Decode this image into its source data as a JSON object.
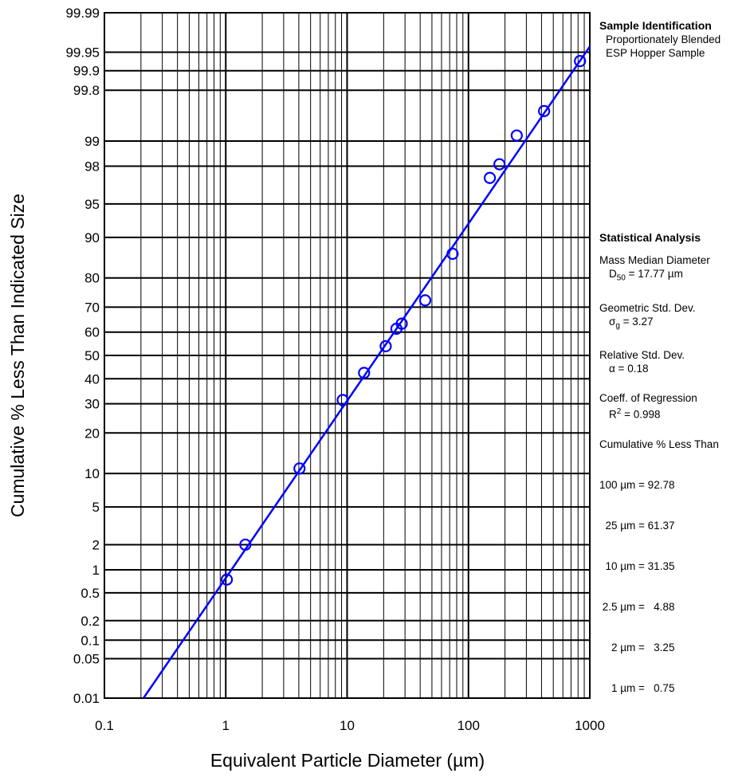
{
  "chart_data": {
    "type": "scatter",
    "title": "",
    "xlabel": "Equivalent Particle Diameter (µm)",
    "ylabel": "Cumulative % Less Than Indicated Size",
    "x_scale": "log",
    "y_scale": "probability",
    "xlim": [
      0.1,
      1000
    ],
    "ylim": [
      0.01,
      99.99
    ],
    "grid": true,
    "x_ticks": [
      "0.1",
      "1",
      "10",
      "100",
      "1000"
    ],
    "y_ticks": [
      "0.01",
      "0.05",
      "0.1",
      "0.2",
      "0.5",
      "1",
      "2",
      "5",
      "10",
      "20",
      "30",
      "40",
      "50",
      "60",
      "70",
      "80",
      "90",
      "95",
      "98",
      "99",
      "99.8",
      "99.9",
      "99.95",
      "99.99"
    ],
    "series": [
      {
        "marker": "open-circle",
        "color": "#0000ff",
        "x": [
          1.02,
          1.45,
          4.05,
          9.2,
          13.8,
          20.8,
          25.5,
          28.2,
          44.0,
          74.0,
          150,
          180,
          250,
          420,
          830
        ],
        "y": [
          0.75,
          2.0,
          11.0,
          31.4,
          42.5,
          54.0,
          61.4,
          63.5,
          72.5,
          86.5,
          97.3,
          98.1,
          99.15,
          99.6,
          99.93
        ]
      },
      {
        "line": "regression-fit",
        "color": "#0000ff",
        "x": [
          0.21,
          1000
        ],
        "y": [
          0.01,
          99.96
        ]
      }
    ]
  },
  "panel": {
    "sample": {
      "heading": "Sample Identification",
      "line1": "Proportionately Blended",
      "line2": "ESP Hopper Sample"
    },
    "stats": {
      "heading": "Statistical Analysis",
      "mmd_label": "Mass Median Diameter",
      "mmd_sym": "D",
      "mmd_sub": "50",
      "mmd_value": " = 17.77 µm",
      "gsd_label": "Geometric Std. Dev.",
      "gsd_sym": "σ",
      "gsd_sub": "g",
      "gsd_value": " = 3.27",
      "rsd_label": "Relative Std. Dev.",
      "rsd_value": "α = 0.18",
      "reg_label": "Coeff. of Regression",
      "reg_sym": "R",
      "reg_sup": "2",
      "reg_value": " = 0.998",
      "cum_label": "Cumulative % Less Than",
      "cum_lines": [
        "100 µm = 92.78",
        "  25 µm = 61.37",
        "  10 µm = 31.35",
        " 2.5 µm =   4.88",
        "    2 µm =   3.25",
        "    1 µm =   0.75"
      ]
    }
  }
}
